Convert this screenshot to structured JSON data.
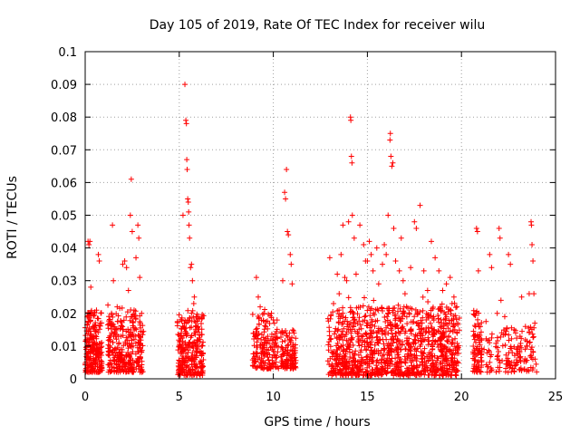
{
  "chart_data": {
    "type": "scatter",
    "title": "Day 105 of 2019, Rate Of TEC Index for receiver wilu",
    "xlabel": "GPS time / hours",
    "ylabel": "ROTI / TECUs",
    "xlim": [
      0,
      25
    ],
    "ylim": [
      0,
      0.1
    ],
    "x_ticks": [
      0,
      5,
      10,
      15,
      20,
      25
    ],
    "x_tick_labels": [
      "0",
      "5",
      "10",
      "15",
      "20",
      "25"
    ],
    "y_ticks": [
      0,
      0.01,
      0.02,
      0.03,
      0.04,
      0.05,
      0.06,
      0.07,
      0.08,
      0.09,
      0.1
    ],
    "y_tick_labels": [
      "0",
      "0.01",
      "0.02",
      "0.03",
      "0.04",
      "0.05",
      "0.06",
      "0.07",
      "0.08",
      "0.09",
      "0.1"
    ],
    "grid": true,
    "marker": "+",
    "color": "#ff0000",
    "series": [
      {
        "points": [
          [
            0.05,
            0.009
          ],
          [
            0.1,
            0.012
          ],
          [
            0.15,
            0.042
          ],
          [
            0.2,
            0.041
          ],
          [
            0.25,
            0.042
          ],
          [
            0.3,
            0.028
          ],
          [
            0.1,
            0.006
          ],
          [
            0.2,
            0.015
          ],
          [
            0.3,
            0.02
          ],
          [
            0.4,
            0.016
          ],
          [
            0.5,
            0.02
          ],
          [
            0.6,
            0.021
          ],
          [
            0.7,
            0.038
          ],
          [
            0.75,
            0.036
          ],
          [
            0.5,
            0.011
          ],
          [
            0.65,
            0.009
          ],
          [
            0.3,
            0.004
          ],
          [
            1.3,
            0.01
          ],
          [
            1.4,
            0.02
          ],
          [
            1.45,
            0.047
          ],
          [
            1.5,
            0.03
          ],
          [
            1.6,
            0.015
          ],
          [
            1.7,
            0.022
          ],
          [
            1.8,
            0.008
          ],
          [
            1.9,
            0.013
          ],
          [
            2.0,
            0.035
          ],
          [
            2.1,
            0.036
          ],
          [
            2.2,
            0.034
          ],
          [
            2.3,
            0.027
          ],
          [
            2.4,
            0.05
          ],
          [
            2.45,
            0.061
          ],
          [
            2.5,
            0.045
          ],
          [
            2.6,
            0.021
          ],
          [
            2.7,
            0.037
          ],
          [
            2.8,
            0.047
          ],
          [
            2.85,
            0.043
          ],
          [
            2.9,
            0.031
          ],
          [
            3.0,
            0.02
          ],
          [
            2.2,
            0.007
          ],
          [
            2.6,
            0.012
          ],
          [
            5.0,
            0.003
          ],
          [
            5.1,
            0.01
          ],
          [
            5.2,
            0.05
          ],
          [
            5.3,
            0.09
          ],
          [
            5.35,
            0.079
          ],
          [
            5.38,
            0.078
          ],
          [
            5.4,
            0.067
          ],
          [
            5.42,
            0.064
          ],
          [
            5.45,
            0.055
          ],
          [
            5.48,
            0.054
          ],
          [
            5.5,
            0.051
          ],
          [
            5.52,
            0.047
          ],
          [
            5.55,
            0.043
          ],
          [
            5.6,
            0.034
          ],
          [
            5.65,
            0.035
          ],
          [
            5.7,
            0.03
          ],
          [
            5.8,
            0.025
          ],
          [
            5.9,
            0.019
          ],
          [
            6.0,
            0.016
          ],
          [
            6.1,
            0.012
          ],
          [
            6.2,
            0.01
          ],
          [
            5.7,
            0.008
          ],
          [
            9.1,
            0.031
          ],
          [
            9.2,
            0.025
          ],
          [
            9.3,
            0.022
          ],
          [
            9.5,
            0.02
          ],
          [
            9.6,
            0.016
          ],
          [
            9.7,
            0.013
          ],
          [
            9.9,
            0.02
          ],
          [
            10.0,
            0.018
          ],
          [
            10.1,
            0.012
          ],
          [
            10.5,
            0.03
          ],
          [
            10.6,
            0.057
          ],
          [
            10.65,
            0.055
          ],
          [
            10.7,
            0.064
          ],
          [
            10.75,
            0.045
          ],
          [
            10.8,
            0.044
          ],
          [
            10.9,
            0.038
          ],
          [
            10.95,
            0.035
          ],
          [
            11.0,
            0.029
          ],
          [
            11.1,
            0.014
          ],
          [
            11.05,
            0.01
          ],
          [
            13.0,
            0.037
          ],
          [
            13.2,
            0.023
          ],
          [
            13.4,
            0.032
          ],
          [
            13.5,
            0.026
          ],
          [
            13.6,
            0.038
          ],
          [
            13.7,
            0.047
          ],
          [
            13.8,
            0.031
          ],
          [
            13.9,
            0.03
          ],
          [
            14.0,
            0.048
          ],
          [
            14.1,
            0.08
          ],
          [
            14.12,
            0.079
          ],
          [
            14.15,
            0.068
          ],
          [
            14.18,
            0.066
          ],
          [
            14.2,
            0.05
          ],
          [
            14.3,
            0.043
          ],
          [
            14.4,
            0.032
          ],
          [
            14.6,
            0.047
          ],
          [
            14.8,
            0.041
          ],
          [
            14.9,
            0.036
          ],
          [
            15.0,
            0.036
          ],
          [
            15.1,
            0.042
          ],
          [
            15.2,
            0.038
          ],
          [
            15.3,
            0.033
          ],
          [
            15.5,
            0.04
          ],
          [
            15.6,
            0.029
          ],
          [
            15.8,
            0.035
          ],
          [
            15.9,
            0.041
          ],
          [
            16.0,
            0.038
          ],
          [
            16.1,
            0.05
          ],
          [
            16.2,
            0.073
          ],
          [
            16.22,
            0.075
          ],
          [
            16.25,
            0.068
          ],
          [
            16.3,
            0.065
          ],
          [
            16.35,
            0.066
          ],
          [
            16.4,
            0.046
          ],
          [
            16.5,
            0.036
          ],
          [
            16.7,
            0.033
          ],
          [
            16.8,
            0.043
          ],
          [
            16.9,
            0.03
          ],
          [
            17.0,
            0.026
          ],
          [
            17.3,
            0.034
          ],
          [
            17.5,
            0.048
          ],
          [
            17.6,
            0.046
          ],
          [
            17.8,
            0.053
          ],
          [
            18.0,
            0.033
          ],
          [
            18.2,
            0.027
          ],
          [
            18.4,
            0.042
          ],
          [
            18.6,
            0.037
          ],
          [
            18.8,
            0.033
          ],
          [
            19.0,
            0.027
          ],
          [
            19.2,
            0.029
          ],
          [
            19.4,
            0.031
          ],
          [
            19.5,
            0.023
          ],
          [
            19.6,
            0.025
          ],
          [
            19.8,
            0.017
          ],
          [
            13.5,
            0.012
          ],
          [
            14.0,
            0.015
          ],
          [
            14.5,
            0.013
          ],
          [
            15.0,
            0.011
          ],
          [
            15.5,
            0.014
          ],
          [
            16.0,
            0.012
          ],
          [
            16.5,
            0.016
          ],
          [
            17.0,
            0.014
          ],
          [
            17.5,
            0.012
          ],
          [
            18.0,
            0.015
          ],
          [
            18.5,
            0.013
          ],
          [
            19.0,
            0.014
          ],
          [
            19.5,
            0.011
          ],
          [
            14.2,
            0.008
          ],
          [
            15.8,
            0.007
          ],
          [
            17.2,
            0.009
          ],
          [
            20.7,
            0.012
          ],
          [
            20.8,
            0.046
          ],
          [
            20.85,
            0.045
          ],
          [
            20.9,
            0.033
          ],
          [
            21.0,
            0.016
          ],
          [
            21.5,
            0.038
          ],
          [
            21.6,
            0.034
          ],
          [
            21.9,
            0.02
          ],
          [
            22.0,
            0.046
          ],
          [
            22.05,
            0.043
          ],
          [
            22.1,
            0.024
          ],
          [
            22.3,
            0.019
          ],
          [
            22.5,
            0.038
          ],
          [
            22.6,
            0.035
          ],
          [
            22.8,
            0.015
          ],
          [
            23.2,
            0.025
          ],
          [
            23.4,
            0.016
          ],
          [
            23.6,
            0.026
          ],
          [
            23.7,
            0.048
          ],
          [
            23.72,
            0.047
          ],
          [
            23.75,
            0.041
          ],
          [
            23.8,
            0.036
          ],
          [
            23.85,
            0.026
          ],
          [
            23.9,
            0.017
          ],
          [
            21.2,
            0.009
          ],
          [
            22.7,
            0.008
          ],
          [
            23.5,
            0.01
          ]
        ]
      }
    ],
    "clusters": [
      {
        "x0": 0.0,
        "x1": 0.9,
        "ymin": 0.002,
        "ymax": 0.021,
        "n": 220
      },
      {
        "x0": 1.2,
        "x1": 3.1,
        "ymin": 0.002,
        "ymax": 0.02,
        "n": 300
      },
      {
        "x0": 4.9,
        "x1": 6.3,
        "ymin": 0.001,
        "ymax": 0.02,
        "n": 260
      },
      {
        "x0": 8.9,
        "x1": 10.3,
        "ymin": 0.003,
        "ymax": 0.02,
        "n": 160
      },
      {
        "x0": 10.4,
        "x1": 11.2,
        "ymin": 0.003,
        "ymax": 0.015,
        "n": 110
      },
      {
        "x0": 12.9,
        "x1": 19.9,
        "ymin": 0.001,
        "ymax": 0.022,
        "n": 1100
      },
      {
        "x0": 20.6,
        "x1": 21.1,
        "ymin": 0.002,
        "ymax": 0.021,
        "n": 80
      },
      {
        "x0": 21.3,
        "x1": 24.0,
        "ymin": 0.002,
        "ymax": 0.016,
        "n": 150
      }
    ]
  }
}
